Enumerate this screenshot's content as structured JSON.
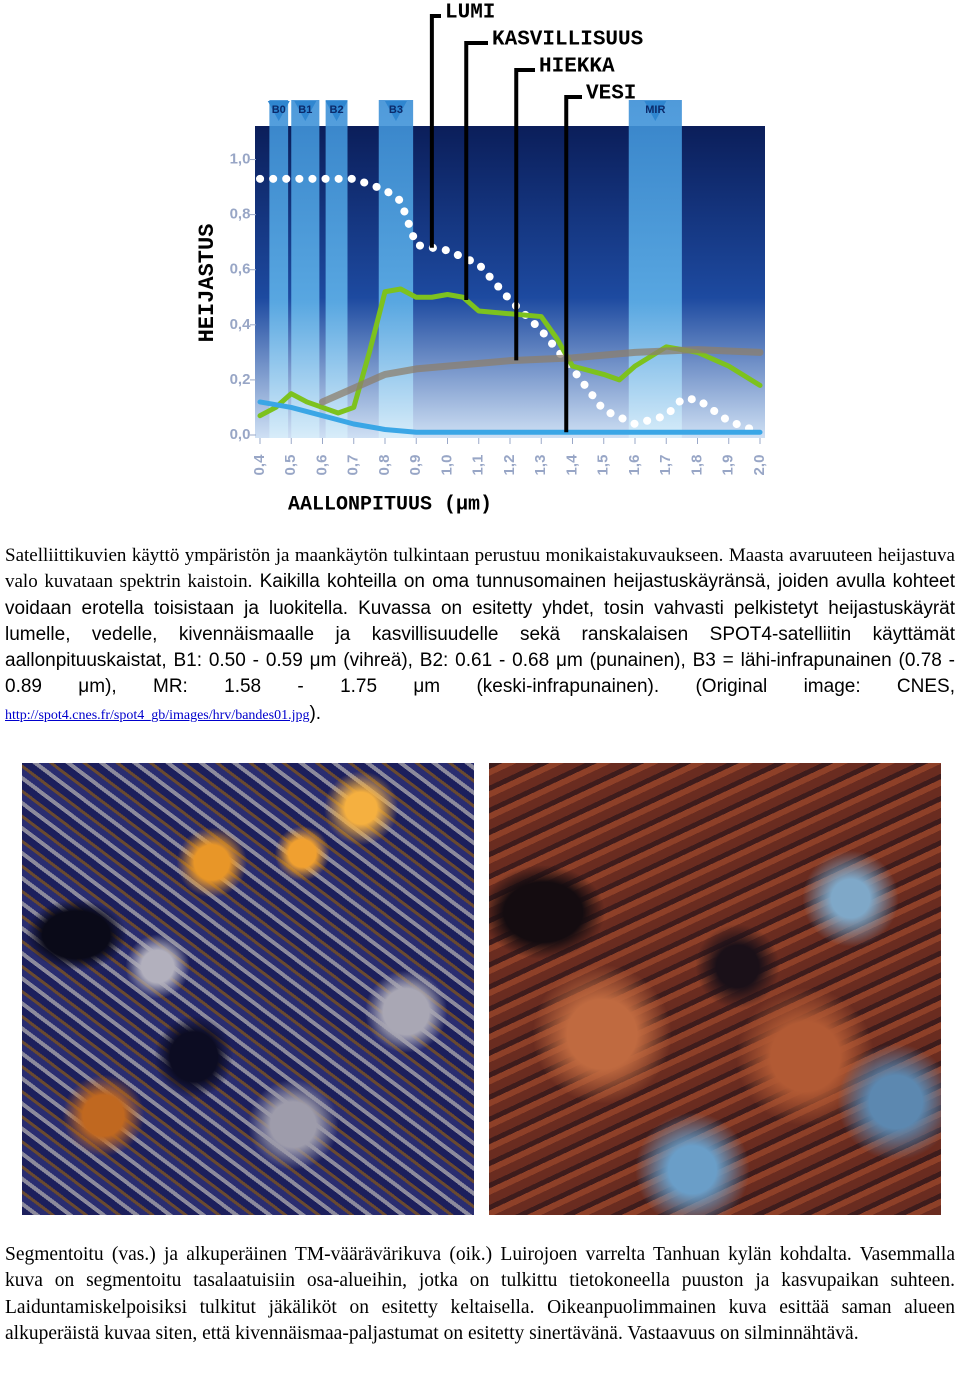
{
  "chart_data": {
    "type": "line",
    "ylabel": "HEIJASTUS",
    "xlabel": "AALLONPITUUS (μm)",
    "xlim": [
      0.4,
      2.0
    ],
    "ylim": [
      0,
      1.1
    ],
    "xticks": [
      {
        "value": 0.4,
        "label": "0,4"
      },
      {
        "value": 0.5,
        "label": "0,5"
      },
      {
        "value": 0.6,
        "label": "0,6"
      },
      {
        "value": 0.7,
        "label": "0,7"
      },
      {
        "value": 0.8,
        "label": "0,8"
      },
      {
        "value": 0.9,
        "label": "0,9"
      },
      {
        "value": 1.0,
        "label": "1,0"
      },
      {
        "value": 1.1,
        "label": "1,1"
      },
      {
        "value": 1.2,
        "label": "1,2"
      },
      {
        "value": 1.3,
        "label": "1,3"
      },
      {
        "value": 1.4,
        "label": "1,4"
      },
      {
        "value": 1.5,
        "label": "1,5"
      },
      {
        "value": 1.6,
        "label": "1,6"
      },
      {
        "value": 1.7,
        "label": "1,7"
      },
      {
        "value": 1.8,
        "label": "1,8"
      },
      {
        "value": 1.9,
        "label": "1,9"
      },
      {
        "value": 2.0,
        "label": "2,0"
      }
    ],
    "yticks": [
      {
        "value": 0,
        "label": "0,0"
      },
      {
        "value": 0.2,
        "label": "0,2"
      },
      {
        "value": 0.4,
        "label": "0,4"
      },
      {
        "value": 0.6,
        "label": "0,6"
      },
      {
        "value": 0.8,
        "label": "0,8"
      },
      {
        "value": 1.0,
        "label": "1,0"
      }
    ],
    "bands": [
      {
        "label": "B0",
        "range": [
          0.43,
          0.49
        ]
      },
      {
        "label": "B1",
        "range": [
          0.5,
          0.59
        ]
      },
      {
        "label": "B2",
        "range": [
          0.61,
          0.68
        ]
      },
      {
        "label": "B3",
        "range": [
          0.78,
          0.89
        ]
      },
      {
        "label": "MIR",
        "range": [
          1.58,
          1.75
        ]
      }
    ],
    "series": [
      {
        "name": "LUMI",
        "color": "#ffffff",
        "style": "dotted",
        "x": [
          0.4,
          0.5,
          0.6,
          0.7,
          0.8,
          0.85,
          0.9,
          1.0,
          1.1,
          1.2,
          1.3,
          1.4,
          1.5,
          1.6,
          1.7,
          1.75,
          1.8,
          1.9,
          2.0
        ],
        "values": [
          0.93,
          0.93,
          0.93,
          0.93,
          0.89,
          0.85,
          0.69,
          0.67,
          0.62,
          0.49,
          0.38,
          0.24,
          0.09,
          0.04,
          0.07,
          0.13,
          0.13,
          0.05,
          0.01
        ]
      },
      {
        "name": "KASVILLISUUS",
        "color": "#7dc21e",
        "style": "solid",
        "x": [
          0.4,
          0.45,
          0.5,
          0.55,
          0.6,
          0.65,
          0.7,
          0.75,
          0.8,
          0.85,
          0.9,
          0.95,
          1.0,
          1.05,
          1.1,
          1.2,
          1.3,
          1.35,
          1.4,
          1.5,
          1.55,
          1.6,
          1.7,
          1.8,
          1.9,
          2.0
        ],
        "values": [
          0.07,
          0.1,
          0.15,
          0.12,
          0.1,
          0.08,
          0.1,
          0.3,
          0.52,
          0.53,
          0.5,
          0.5,
          0.51,
          0.5,
          0.45,
          0.44,
          0.43,
          0.35,
          0.25,
          0.22,
          0.2,
          0.25,
          0.32,
          0.3,
          0.25,
          0.18
        ]
      },
      {
        "name": "HIEKKA",
        "color": "#8c7f6c",
        "style": "solid",
        "x": [
          0.6,
          0.7,
          0.8,
          0.9,
          1.0,
          1.2,
          1.4,
          1.6,
          1.8,
          2.0
        ],
        "values": [
          0.12,
          0.17,
          0.22,
          0.24,
          0.25,
          0.27,
          0.28,
          0.3,
          0.31,
          0.3
        ]
      },
      {
        "name": "VESI",
        "color": "#3aa6e6",
        "style": "solid",
        "x": [
          0.4,
          0.5,
          0.6,
          0.7,
          0.8,
          0.9,
          1.0,
          1.2,
          1.4,
          1.6,
          1.8,
          2.0
        ],
        "values": [
          0.12,
          0.1,
          0.07,
          0.04,
          0.02,
          0.01,
          0.01,
          0.01,
          0.01,
          0.01,
          0.01,
          0.01
        ]
      }
    ]
  },
  "document": {
    "paragraph1": {
      "part1": "Satelliittikuvien käyttö ympäristön ja maankäytön tulkintaan perustuu monikaistakuvaukseen. Maasta avaruuteen heijastuva valo kuvataan spektrin kaistoin.",
      "part2": "Kaikilla kohteilla on oma tunnusomainen heijastuskäyränsä, joiden avulla kohteet voidaan erotella toisistaan ja luokitella.",
      "part3": "Kuvassa on esitetty yhdet, tosin vahvasti pelkistetyt heijastuskäyrät lumelle, vedelle, kivennäismaalle ja kasvillisuudelle sekä ranskalaisen SPOT4-satelliitin käyttämät aallonpituuskaistat, B1: 0.50 - 0.59 μm (vihreä), B2: 0.61 - 0.68 μm (punainen), B3 = lähi-infrapunainen (0.78 - 0.89 μm), MR: 1.58 - 1.75 μm (keski-infrapunainen). (Original image: CNES,",
      "link": "http://spot4.cnes.fr/spot4_gb/images/hrv/bandes01.jpg",
      "end": ")."
    },
    "paragraph2": "Segmentoitu (vas.) ja alkuperäinen TM-väärävärikuva (oik.) Luirojoen varrelta Tanhuan kylän kohdalta. Vasemmalla kuva on segmentoitu tasalaatuisiin osa-alueihin, jotka on tulkittu tietokoneella puuston ja kasvupaikan suhteen. Laiduntamiskelpoisiksi tulkitut jäkäliköt on esitetty keltaisella. Oikeanpuolimmainen kuva esittää saman alueen alkuperäistä kuvaa siten, että kivennäismaa-paljastumat on esitetty sinertävänä. Vastaavuus on silminnähtävä."
  }
}
